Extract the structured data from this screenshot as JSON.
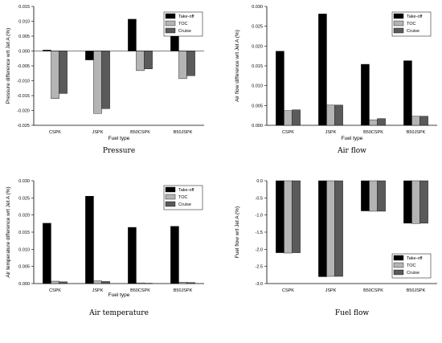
{
  "series_colors": [
    "#000000",
    "#b4b4b4",
    "#5a5a5a"
  ],
  "chart_data": [
    {
      "type": "bar",
      "caption": "Pressure",
      "xlabel": "Fuel type",
      "ylabel": "Pressure difference wrt Jet A (%)",
      "categories": [
        "CSPK",
        "JSPK",
        "B50CSPK",
        "B50JSPK"
      ],
      "ylim": [
        -0.025,
        0.015
      ],
      "yticks": [
        -0.025,
        -0.02,
        -0.015,
        -0.01,
        -0.005,
        0.0,
        0.005,
        0.01,
        0.015
      ],
      "ytick_labels": [
        "-0.025",
        "-0.020",
        "-0.015",
        "-0.010",
        "-0.005",
        "0.000",
        "0.005",
        "0.010",
        "0.015"
      ],
      "legend_position": "top-right",
      "series": [
        {
          "name": "Take-off",
          "values": [
            0.0003,
            -0.003,
            0.0107,
            0.0077
          ]
        },
        {
          "name": "TOC",
          "values": [
            -0.016,
            -0.021,
            -0.0066,
            -0.0093
          ]
        },
        {
          "name": "Cruise",
          "values": [
            -0.0143,
            -0.0194,
            -0.006,
            -0.0083
          ]
        }
      ]
    },
    {
      "type": "bar",
      "caption": "Air flow",
      "xlabel": "Fuel type",
      "ylabel": "Air flow difference wrt Jet A (%)",
      "categories": [
        "CSPK",
        "JSPK",
        "B50CSPK",
        "B50JSPK"
      ],
      "ylim": [
        0,
        0.03
      ],
      "yticks": [
        0.0,
        0.005,
        0.01,
        0.015,
        0.02,
        0.025,
        0.03
      ],
      "ytick_labels": [
        "0.000",
        "0.005",
        "0.010",
        "0.015",
        "0.020",
        "0.025",
        "0.030"
      ],
      "legend_position": "top-right",
      "series": [
        {
          "name": "Take-off",
          "values": [
            0.0187,
            0.0281,
            0.0154,
            0.0163
          ]
        },
        {
          "name": "TOC",
          "values": [
            0.0037,
            0.0051,
            0.0014,
            0.0023
          ]
        },
        {
          "name": "Cruise",
          "values": [
            0.0039,
            0.0051,
            0.0017,
            0.0023
          ]
        }
      ]
    },
    {
      "type": "bar",
      "caption": "Air temperature",
      "xlabel": "Fuel type",
      "ylabel": "Air temperature difference wrt Jet A (%)",
      "categories": [
        "CSPK",
        "JSPK",
        "B50CSPK",
        "B50JSPK"
      ],
      "ylim": [
        0,
        0.03
      ],
      "yticks": [
        0.0,
        0.005,
        0.01,
        0.015,
        0.02,
        0.025,
        0.03
      ],
      "ytick_labels": [
        "0.000",
        "0.005",
        "0.010",
        "0.015",
        "0.020",
        "0.025",
        "0.030"
      ],
      "legend_position": "top-right",
      "series": [
        {
          "name": "Take-off",
          "values": [
            0.0176,
            0.0255,
            0.0164,
            0.0167
          ]
        },
        {
          "name": "TOC",
          "values": [
            0.0007,
            0.0008,
            0.0002,
            0.0004
          ]
        },
        {
          "name": "Cruise",
          "values": [
            0.0005,
            0.0006,
            0.0001,
            0.0003
          ]
        }
      ]
    },
    {
      "type": "bar",
      "caption": "Fuel flow",
      "xlabel": "",
      "ylabel": "Fuel flow wrt Jet A (%)",
      "categories": [
        "CSPK",
        "JSPK",
        "B50CSPK",
        "B50JSPK"
      ],
      "ylim": [
        -3.0,
        0.0
      ],
      "yticks": [
        -3.0,
        -2.5,
        -2.0,
        -1.5,
        -1.0,
        -0.5,
        0.0
      ],
      "ytick_labels": [
        "-3.0",
        "-2.5",
        "-2.0",
        "-1.5",
        "-1.0",
        "-0.5",
        "0.0"
      ],
      "legend_position": "bottom-right",
      "series": [
        {
          "name": "Take-off",
          "values": [
            -2.1,
            -2.8,
            -0.88,
            -1.24
          ]
        },
        {
          "name": "TOC",
          "values": [
            -2.11,
            -2.79,
            -0.89,
            -1.25
          ]
        },
        {
          "name": "Cruise",
          "values": [
            -2.1,
            -2.79,
            -0.89,
            -1.24
          ]
        }
      ]
    }
  ]
}
